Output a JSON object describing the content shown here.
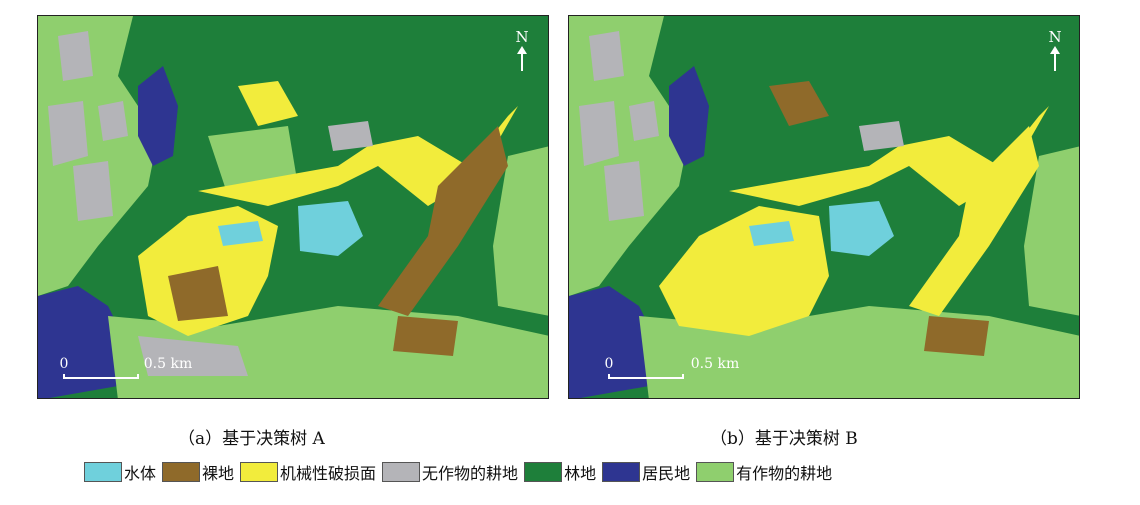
{
  "panels": [
    {
      "id": "a",
      "caption": "（a）基于决策树 A",
      "north_label": "N",
      "scale_zero": "0",
      "scale_label": "0.5 km"
    },
    {
      "id": "b",
      "caption": "（b）基于决策树 B",
      "north_label": "N",
      "scale_zero": "0",
      "scale_label": "0.5 km"
    }
  ],
  "legend": [
    {
      "label": "水体",
      "color": "#6fd0dc"
    },
    {
      "label": "裸地",
      "color": "#8f6a2a"
    },
    {
      "label": "机械性破损面",
      "color": "#f2ec3c"
    },
    {
      "label": "无作物的耕地",
      "color": "#b4b4b8"
    },
    {
      "label": "林地",
      "color": "#1e7f3a"
    },
    {
      "label": "居民地",
      "color": "#2e3591"
    },
    {
      "label": "有作物的耕地",
      "color": "#8fcf6e"
    }
  ]
}
